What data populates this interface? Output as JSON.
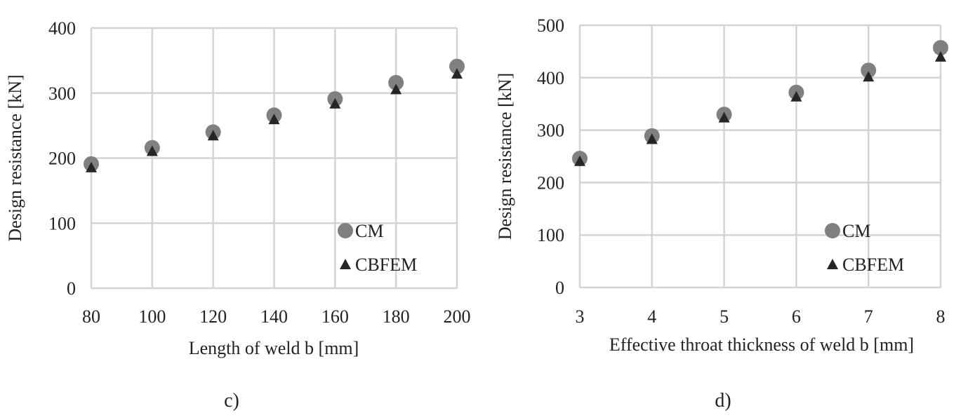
{
  "chart_data": [
    {
      "type": "scatter",
      "caption": "c)",
      "xlabel": "Length of weld b [mm]",
      "ylabel": "Design resistance [kN]",
      "xlim": [
        80,
        200
      ],
      "ylim": [
        0,
        400
      ],
      "xticks": [
        80,
        100,
        120,
        140,
        160,
        180,
        200
      ],
      "yticks": [
        0,
        100,
        200,
        300,
        400
      ],
      "grid": true,
      "legend": "bottom-right",
      "series": [
        {
          "name": "CM",
          "marker": "circle",
          "color": "#808080",
          "x": [
            80,
            100,
            120,
            140,
            160,
            180,
            200
          ],
          "y": [
            191,
            216,
            240,
            266,
            291,
            316,
            341
          ]
        },
        {
          "name": "CBFEM",
          "marker": "triangle",
          "color": "#262626",
          "x": [
            80,
            100,
            120,
            140,
            160,
            180,
            200
          ],
          "y": [
            189,
            214,
            238,
            263,
            287,
            309,
            333
          ]
        }
      ]
    },
    {
      "type": "scatter",
      "caption": "d)",
      "xlabel": "Effective throat thickness of weld b [mm]",
      "ylabel": "Design resistance [kN]",
      "xlim": [
        3,
        8
      ],
      "ylim": [
        0,
        500
      ],
      "xticks": [
        3,
        4,
        5,
        6,
        7,
        8
      ],
      "yticks": [
        0,
        100,
        200,
        300,
        400,
        500
      ],
      "grid": true,
      "legend": "bottom-right",
      "series": [
        {
          "name": "CM",
          "marker": "circle",
          "color": "#808080",
          "x": [
            3,
            4,
            5,
            6,
            7,
            8
          ],
          "y": [
            246,
            289,
            330,
            372,
            414,
            457
          ]
        },
        {
          "name": "CBFEM",
          "marker": "triangle",
          "color": "#262626",
          "x": [
            3,
            4,
            5,
            6,
            7,
            8
          ],
          "y": [
            245,
            287,
            328,
            368,
            406,
            444
          ]
        }
      ]
    }
  ]
}
